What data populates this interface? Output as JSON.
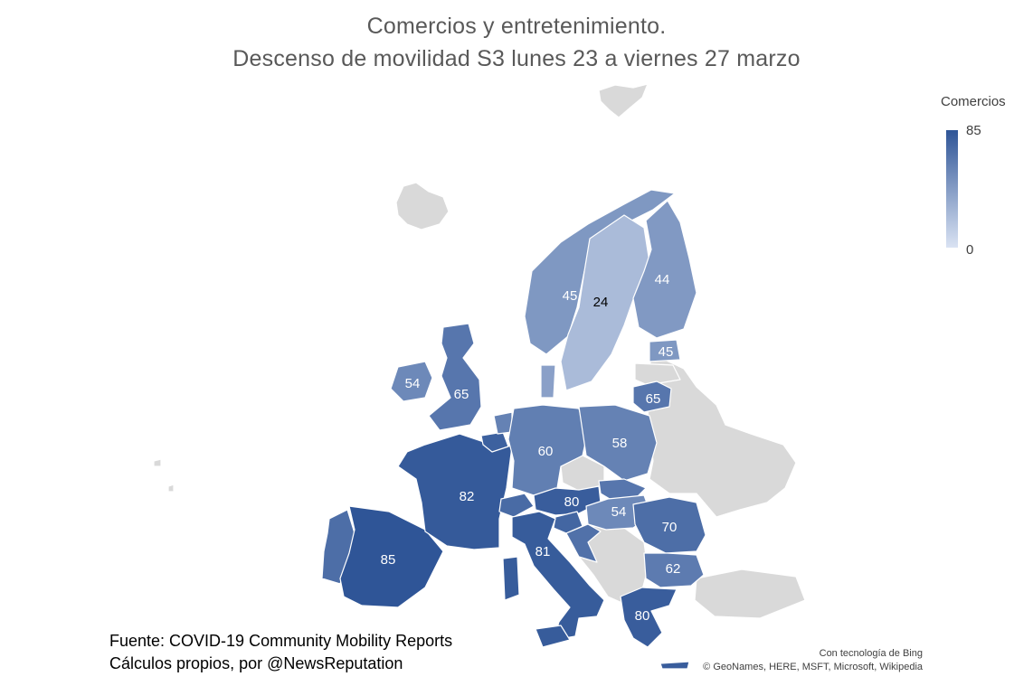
{
  "title": {
    "line1": "Comercios y entretenimiento.",
    "line2": "Descenso de movilidad S3 lunes 23 a viernes 27 marzo"
  },
  "legend": {
    "title": "Comercios",
    "max": "85",
    "min": "0",
    "max_value": 85,
    "min_value": 0,
    "color_high": "#2f5597",
    "color_low": "#dae3f3"
  },
  "source": {
    "line1": "Fuente: COVID-19 Community Mobility Reports",
    "line2": "Cálculos propios, por @NewsReputation"
  },
  "attribution": {
    "line1": "Con tecnología de Bing",
    "line2": "© GeoNames, HERE, MSFT, Microsoft, Wikipedia"
  },
  "no_data_color": "#d9d9d9",
  "regions": [
    {
      "id": "spain",
      "value": 85,
      "label": "85"
    },
    {
      "id": "portugal",
      "value": 70
    },
    {
      "id": "france",
      "value": 82,
      "label": "82"
    },
    {
      "id": "italy",
      "value": 81,
      "label": "81"
    },
    {
      "id": "austria",
      "value": 80,
      "label": "80"
    },
    {
      "id": "greece",
      "value": 80,
      "label": "80"
    },
    {
      "id": "romania",
      "value": 70,
      "label": "70"
    },
    {
      "id": "bulgaria",
      "value": 62,
      "label": "62"
    },
    {
      "id": "hungary",
      "value": 54,
      "label": "54"
    },
    {
      "id": "slovakia",
      "value": 65
    },
    {
      "id": "slovenia",
      "value": 75
    },
    {
      "id": "croatia",
      "value": 68
    },
    {
      "id": "switzerland",
      "value": 72
    },
    {
      "id": "belgium",
      "value": 78
    },
    {
      "id": "netherlands",
      "value": 58
    },
    {
      "id": "germany",
      "value": 60,
      "label": "60"
    },
    {
      "id": "poland",
      "value": 58,
      "label": "58"
    },
    {
      "id": "uk",
      "value": 65,
      "label": "65"
    },
    {
      "id": "ireland",
      "value": 54,
      "label": "54"
    },
    {
      "id": "norway",
      "value": 45,
      "label": "45"
    },
    {
      "id": "sweden",
      "value": 24,
      "label": "24"
    },
    {
      "id": "finland",
      "value": 44,
      "label": "44"
    },
    {
      "id": "estonia",
      "value": 45,
      "label": "45"
    },
    {
      "id": "lithuania",
      "value": 65,
      "label": "65"
    },
    {
      "id": "denmark",
      "value": 40
    }
  ]
}
